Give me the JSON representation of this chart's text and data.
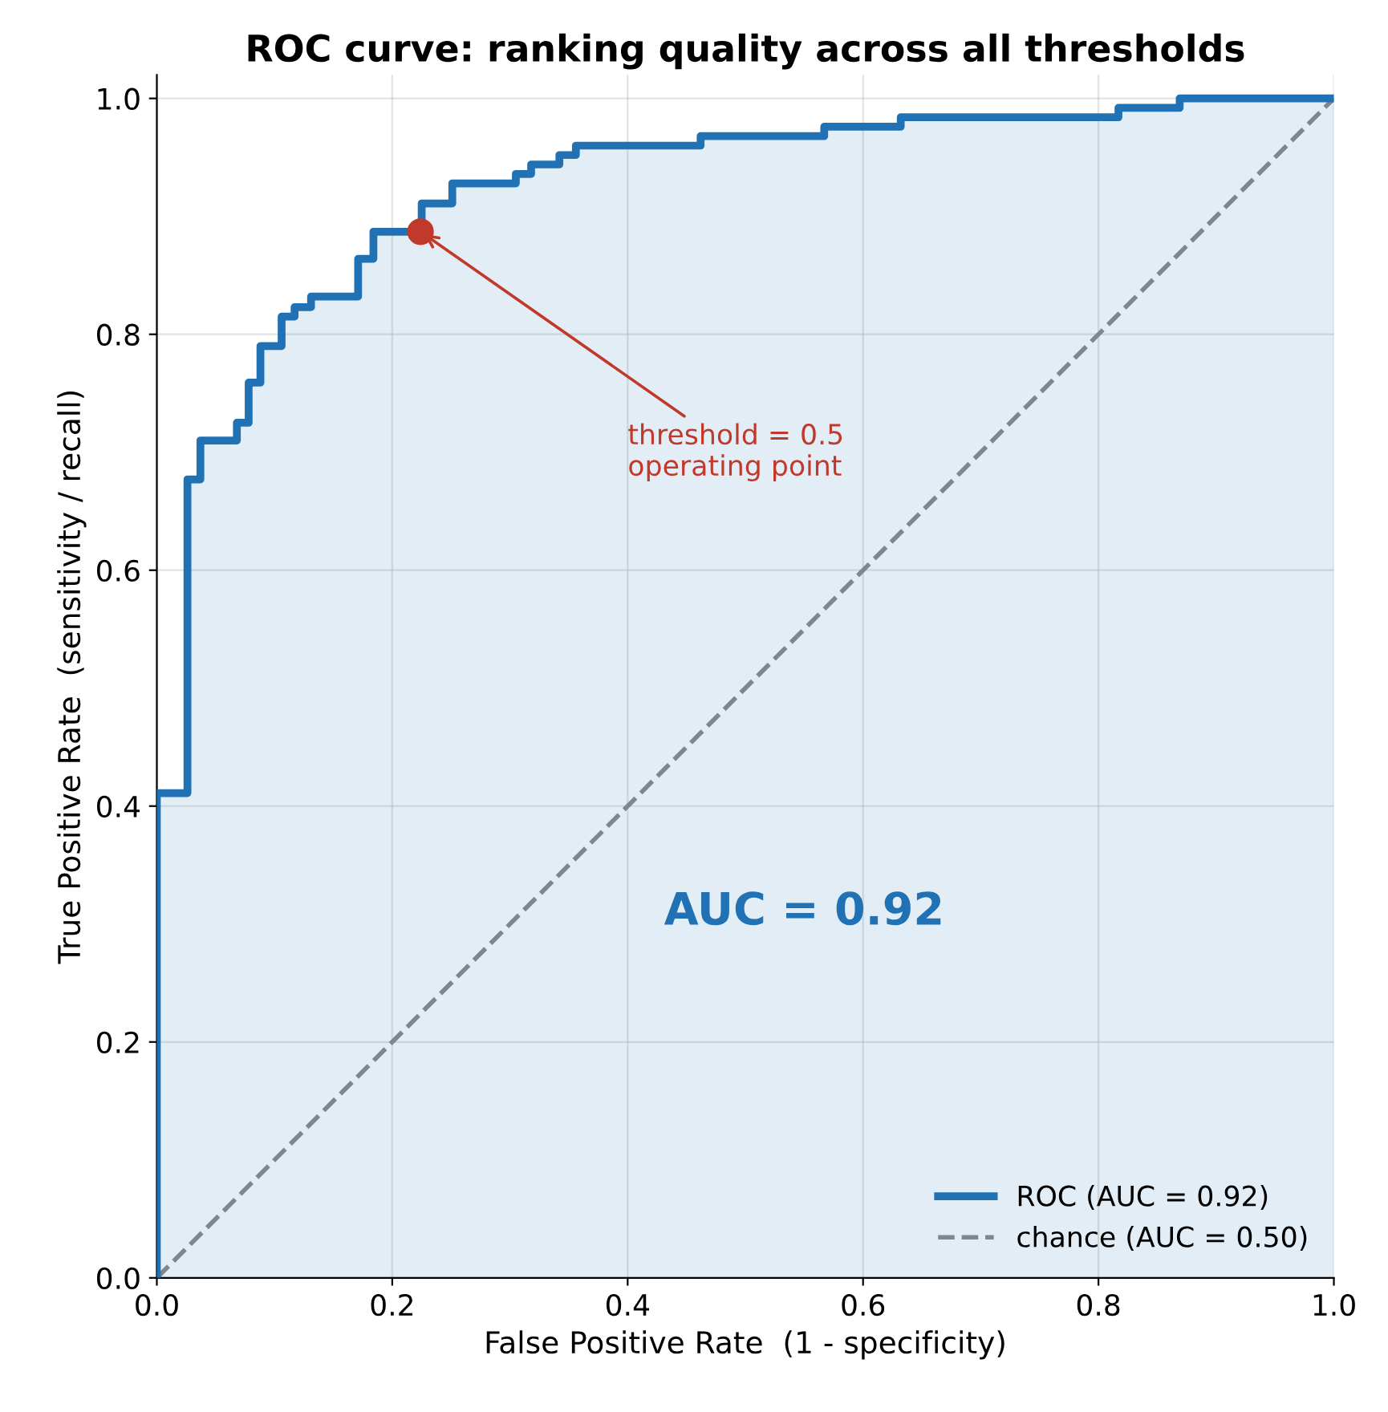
{
  "chart_data": {
    "type": "step",
    "title": "ROC curve: ranking quality across all thresholds",
    "xlabel": "False Positive Rate  (1 - specificity)",
    "ylabel": "True Positive Rate  (sensitivity / recall)",
    "xlim": [
      0,
      1
    ],
    "ylim": [
      0,
      1.02
    ],
    "xticks": [
      {
        "value": 0,
        "label": "0.0"
      },
      0.2,
      0.4,
      0.6,
      0.8,
      {
        "value": 1,
        "label": "1.0"
      }
    ],
    "yticks": [
      {
        "value": 0,
        "label": "0.0"
      },
      0.2,
      0.4,
      0.6,
      0.8,
      {
        "value": 1,
        "label": "1.0"
      }
    ],
    "grid": true,
    "legend": "bottom right",
    "series": [
      {
        "name": "ROC (AUC = 0.92)",
        "color": "#2171b5",
        "line_style": "solid",
        "x": [
          0,
          0,
          0.026,
          0.037,
          0.068,
          0.078,
          0.088,
          0.106,
          0.117,
          0.131,
          0.171,
          0.184,
          0.225,
          0.251,
          0.305,
          0.318,
          0.342,
          0.356,
          0.462,
          0.567,
          0.632,
          0.817,
          0.869,
          1.0
        ],
        "values": [
          0,
          0.411,
          0.677,
          0.71,
          0.725,
          0.759,
          0.79,
          0.815,
          0.823,
          0.832,
          0.864,
          0.887,
          0.911,
          0.928,
          0.936,
          0.944,
          0.952,
          0.96,
          0.968,
          0.976,
          0.984,
          0.992,
          1.0,
          1.0
        ]
      },
      {
        "name": "chance (AUC = 0.50)",
        "type": "line",
        "color": "#7f878c",
        "line_style": "dashed",
        "x": [
          0,
          1
        ],
        "values": [
          0,
          1
        ]
      },
      {
        "type": "scatter",
        "color": "#c0392b",
        "marker": "circle",
        "x": [
          0.224
        ],
        "values": [
          0.887
        ]
      }
    ],
    "annotations": [
      {
        "text": "threshold = 0.5\noperating point",
        "x": 0.224,
        "y": 0.887
      },
      "AUC = 0.92"
    ]
  }
}
